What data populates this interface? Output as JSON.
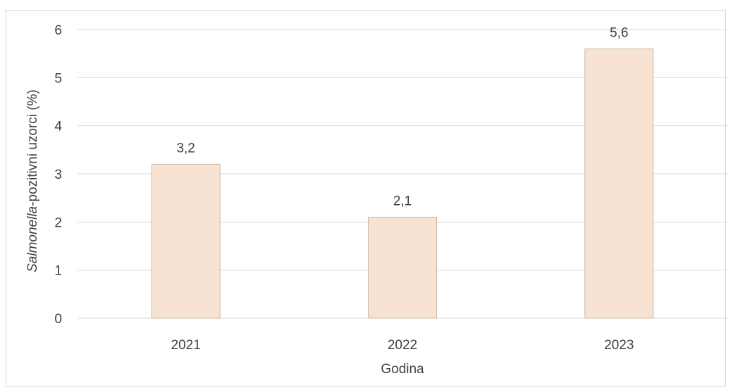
{
  "chart_data": {
    "type": "bar",
    "categories": [
      "2021",
      "2022",
      "2023"
    ],
    "values": [
      3.2,
      2.1,
      5.6
    ],
    "value_labels": [
      "3,2",
      "2,1",
      "5,6"
    ],
    "title": "",
    "xlabel": "Godina",
    "ylabel_italic": "Salmonella",
    "ylabel_rest": "-pozitivni uzorci (%)",
    "ylim": [
      0,
      6
    ],
    "yticks": [
      "0",
      "1",
      "2",
      "3",
      "4",
      "5",
      "6"
    ],
    "grid": true,
    "legend": "none",
    "colors": {
      "bar_fill": "#f8e3d3",
      "bar_stroke": "#c9b8a8",
      "grid": "#d9d9d9",
      "text": "#404040"
    }
  }
}
